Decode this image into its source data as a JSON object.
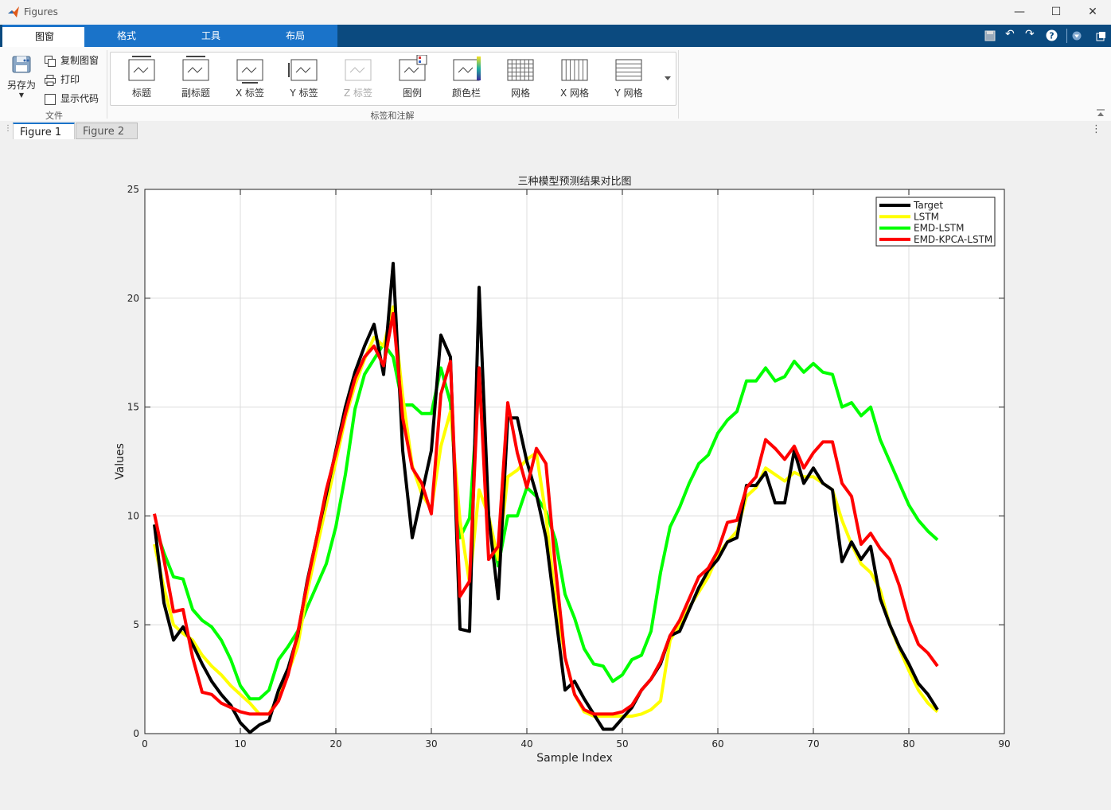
{
  "window": {
    "title": "Figures",
    "minimize": "—",
    "maximize": "☐",
    "close": "✕"
  },
  "ribbon_tabs": [
    "图窗",
    "格式",
    "工具",
    "布局"
  ],
  "file_group": {
    "save_as": "另存为",
    "copy_figure": "复制图窗",
    "print": "打印",
    "show_code": "显示代码",
    "label": "文件"
  },
  "annot_group": {
    "label": "标签和注解",
    "buttons": [
      "标题",
      "副标题",
      "X 标签",
      "Y 标签",
      "Z 标签",
      "图例",
      "颜色栏",
      "网格",
      "X 网格",
      "Y 网格"
    ]
  },
  "doc_tabs": [
    {
      "label": "Figure 1",
      "active": true
    },
    {
      "label": "Figure 2",
      "active": false
    }
  ],
  "colors": {
    "target": "#000000",
    "lstm": "#ffff00",
    "emd_lstm": "#00ff00",
    "emd_kpca_lstm": "#ff0000",
    "accent": "#1a73c9",
    "ribbon_dark": "#0b4a7f"
  },
  "chart_data": {
    "type": "line",
    "title": "三种模型预测结果对比图",
    "xlabel": "Sample Index",
    "ylabel": "Values",
    "xlim": [
      0,
      90
    ],
    "ylim": [
      0,
      25
    ],
    "xticks": [
      0,
      10,
      20,
      30,
      40,
      50,
      60,
      70,
      80,
      90
    ],
    "yticks": [
      0,
      5,
      10,
      15,
      20,
      25
    ],
    "grid": true,
    "legend_position": "top-right",
    "x": [
      1,
      2,
      3,
      4,
      5,
      6,
      7,
      8,
      9,
      10,
      11,
      12,
      13,
      14,
      15,
      16,
      17,
      18,
      19,
      20,
      21,
      22,
      23,
      24,
      25,
      26,
      27,
      28,
      29,
      30,
      31,
      32,
      33,
      34,
      35,
      36,
      37,
      38,
      39,
      40,
      41,
      42,
      43,
      44,
      45,
      46,
      47,
      48,
      49,
      50,
      51,
      52,
      53,
      54,
      55,
      56,
      57,
      58,
      59,
      60,
      61,
      62,
      63,
      64,
      65,
      66,
      67,
      68,
      69,
      70,
      71,
      72,
      73,
      74,
      75,
      76,
      77,
      78,
      79,
      80,
      81,
      82,
      83
    ],
    "series": [
      {
        "name": "Target",
        "values": [
          9.6,
          6.0,
          4.3,
          4.9,
          4.1,
          3.2,
          2.4,
          1.8,
          1.3,
          0.5,
          0.05,
          0.4,
          0.6,
          2.0,
          3.0,
          4.5,
          7.0,
          9.0,
          11.0,
          13.0,
          15.0,
          16.6,
          17.8,
          18.8,
          16.5,
          21.6,
          13.0,
          9.0,
          11.0,
          13.0,
          18.3,
          17.3,
          4.8,
          4.7,
          20.5,
          10.0,
          6.2,
          14.5,
          14.5,
          12.5,
          11.0,
          9.0,
          5.5,
          2.0,
          2.4,
          1.6,
          0.9,
          0.2,
          0.2,
          0.7,
          1.2,
          2.0,
          2.5,
          3.2,
          4.5,
          4.7,
          5.7,
          6.7,
          7.5,
          8.0,
          8.8,
          9.0,
          11.4,
          11.4,
          12.0,
          10.6,
          10.6,
          13.0,
          11.5,
          12.2,
          11.5,
          11.2,
          7.9,
          8.8,
          8.0,
          8.6,
          6.2,
          5.0,
          4.0,
          3.2,
          2.3,
          1.8,
          1.1
        ]
      },
      {
        "name": "LSTM",
        "values": [
          8.7,
          6.7,
          5.0,
          4.6,
          4.3,
          3.6,
          3.1,
          2.7,
          2.2,
          1.8,
          1.4,
          0.9,
          0.9,
          1.7,
          2.8,
          4.0,
          6.5,
          8.5,
          10.5,
          12.5,
          14.5,
          16.0,
          17.2,
          18.2,
          17.8,
          19.6,
          15.5,
          12.3,
          11.0,
          10.3,
          13.2,
          14.8,
          9.8,
          6.9,
          11.2,
          10.0,
          8.0,
          11.8,
          12.1,
          12.6,
          12.9,
          10.0,
          6.2,
          3.5,
          1.8,
          1.0,
          0.8,
          0.8,
          0.8,
          0.8,
          0.8,
          0.9,
          1.1,
          1.5,
          4.3,
          5.0,
          5.8,
          6.5,
          7.2,
          8.2,
          8.8,
          9.3,
          10.9,
          11.3,
          12.2,
          11.9,
          11.6,
          12.0,
          11.8,
          11.8,
          11.5,
          11.2,
          9.8,
          8.7,
          7.8,
          7.4,
          6.6,
          5.0,
          3.9,
          2.9,
          2.0,
          1.4,
          1.0
        ]
      },
      {
        "name": "EMD-LSTM",
        "values": [
          9.6,
          8.3,
          7.2,
          7.1,
          5.7,
          5.2,
          4.9,
          4.3,
          3.4,
          2.2,
          1.6,
          1.6,
          2.0,
          3.4,
          4.0,
          4.7,
          5.8,
          6.8,
          7.8,
          9.5,
          11.9,
          14.9,
          16.5,
          17.2,
          17.9,
          17.3,
          15.1,
          15.1,
          14.7,
          14.7,
          16.8,
          15.2,
          9.0,
          9.9,
          16.2,
          10.0,
          7.7,
          10.0,
          10.0,
          11.3,
          10.9,
          10.2,
          8.9,
          6.4,
          5.3,
          3.9,
          3.2,
          3.1,
          2.4,
          2.7,
          3.4,
          3.6,
          4.7,
          7.4,
          9.5,
          10.4,
          11.5,
          12.4,
          12.8,
          13.8,
          14.4,
          14.8,
          16.2,
          16.2,
          16.8,
          16.2,
          16.4,
          17.1,
          16.6,
          17.0,
          16.6,
          16.5,
          15.0,
          15.2,
          14.6,
          15.0,
          13.5,
          12.5,
          11.5,
          10.5,
          9.8,
          9.3,
          8.9
        ]
      },
      {
        "name": "EMD-KPCA-LSTM",
        "values": [
          10.1,
          8.0,
          5.6,
          5.7,
          3.5,
          1.9,
          1.8,
          1.4,
          1.2,
          1.0,
          0.9,
          0.9,
          0.9,
          1.5,
          2.7,
          4.6,
          6.9,
          9.0,
          11.2,
          12.9,
          14.7,
          16.3,
          17.3,
          17.8,
          16.9,
          19.3,
          14.5,
          12.2,
          11.5,
          10.1,
          15.6,
          17.1,
          6.3,
          7.0,
          16.8,
          8.0,
          8.6,
          15.2,
          12.9,
          11.3,
          13.1,
          12.4,
          7.6,
          3.5,
          1.8,
          1.1,
          0.9,
          0.9,
          0.9,
          1.0,
          1.3,
          2.0,
          2.5,
          3.3,
          4.5,
          5.2,
          6.2,
          7.2,
          7.6,
          8.4,
          9.7,
          9.8,
          11.3,
          11.8,
          13.5,
          13.1,
          12.6,
          13.2,
          12.2,
          12.9,
          13.4,
          13.4,
          11.5,
          10.9,
          8.7,
          9.2,
          8.5,
          8.0,
          6.8,
          5.2,
          4.1,
          3.7,
          3.1
        ]
      }
    ]
  }
}
